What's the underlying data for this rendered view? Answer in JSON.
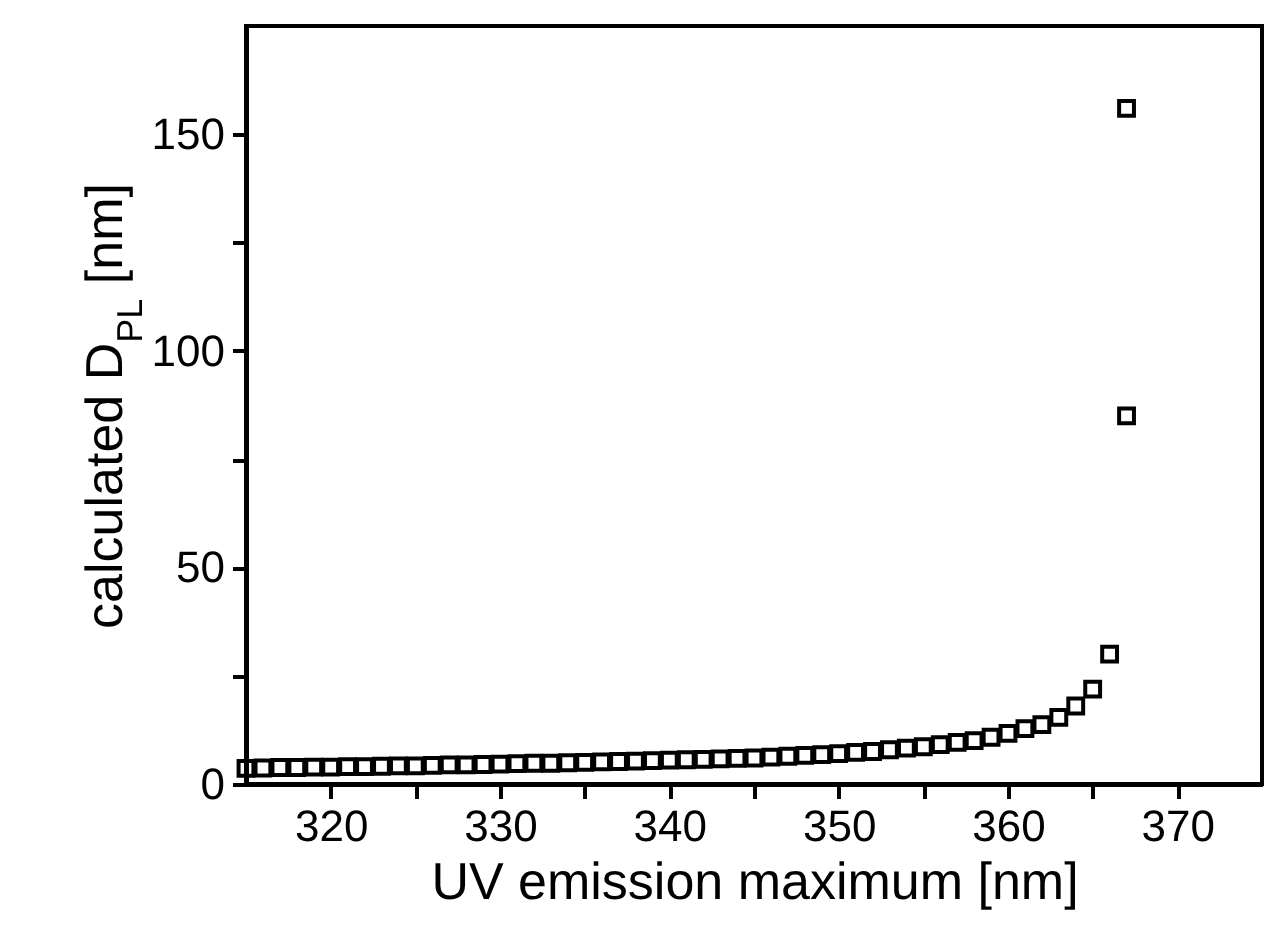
{
  "chart_data": {
    "type": "scatter",
    "xlabel": "UV emission maximum [nm]",
    "ylabel": "calculated D$_{PL}$ [nm]",
    "x": [
      315,
      316,
      317,
      318,
      319,
      320,
      321,
      322,
      323,
      324,
      325,
      326,
      327,
      328,
      329,
      330,
      331,
      332,
      333,
      334,
      335,
      336,
      337,
      338,
      339,
      340,
      341,
      342,
      343,
      344,
      345,
      346,
      347,
      348,
      349,
      350,
      351,
      352,
      353,
      354,
      355,
      356,
      357,
      358,
      359,
      360,
      361,
      362,
      363,
      364,
      365,
      366,
      367,
      367
    ],
    "series": [
      {
        "color": "#000000",
        "values": [
          3.6,
          3.7,
          3.8,
          3.8,
          3.9,
          3.9,
          4.0,
          4.0,
          4.1,
          4.2,
          4.2,
          4.3,
          4.4,
          4.4,
          4.5,
          4.6,
          4.7,
          4.8,
          4.8,
          4.9,
          5.0,
          5.1,
          5.2,
          5.3,
          5.4,
          5.5,
          5.6,
          5.7,
          5.8,
          5.9,
          6.0,
          6.2,
          6.4,
          6.6,
          6.8,
          7.0,
          7.3,
          7.5,
          7.9,
          8.3,
          8.6,
          9.1,
          9.6,
          10.0,
          10.8,
          11.7,
          12.8,
          13.7,
          15.4,
          18,
          21.9,
          30,
          85,
          156
        ]
      }
    ],
    "xlim": [
      315,
      375
    ],
    "ylim": [
      0,
      175
    ],
    "xticks": [
      320,
      {
        "value": 325,
        "label": null
      },
      330,
      {
        "value": 335,
        "label": null
      },
      340,
      {
        "value": 345,
        "label": null
      },
      350,
      {
        "value": 355,
        "label": null
      },
      360,
      {
        "value": 365,
        "label": null
      },
      370
    ],
    "yticks": [
      0,
      {
        "value": 25,
        "label": null
      },
      50,
      {
        "value": 75,
        "label": null
      },
      100,
      {
        "value": 125,
        "label": null
      },
      150
    ],
    "marker": "square"
  }
}
